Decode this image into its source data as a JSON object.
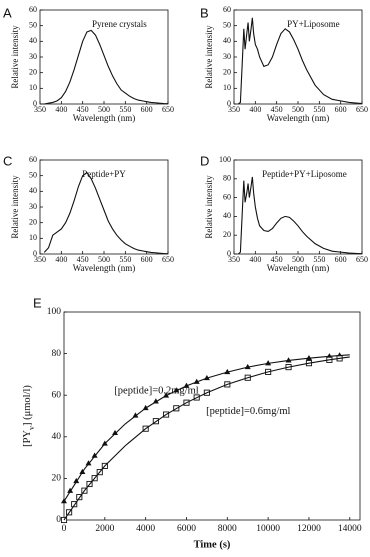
{
  "chart_data": [
    {
      "panel": "A",
      "type": "line",
      "title": "Pyrene crystals",
      "color": "#111111",
      "x": [
        350,
        360,
        370,
        380,
        390,
        400,
        410,
        420,
        430,
        440,
        450,
        460,
        470,
        480,
        490,
        500,
        510,
        520,
        530,
        540,
        550,
        560,
        570,
        580,
        590,
        600,
        610,
        620,
        630,
        640,
        650
      ],
      "values": [
        0,
        0,
        0.5,
        1,
        2,
        4,
        8,
        14,
        22,
        31,
        40,
        46,
        47,
        44,
        38,
        31,
        24,
        18,
        13,
        9,
        7,
        5,
        3.5,
        2.5,
        2,
        1.5,
        1,
        0.8,
        0.5,
        0.3,
        0.2
      ],
      "xlim": [
        350,
        650
      ],
      "ylim": [
        0,
        60
      ],
      "xticks": [
        350,
        400,
        450,
        500,
        550,
        600,
        650
      ],
      "yticks": [
        0,
        10,
        20,
        30,
        40,
        50,
        60
      ],
      "xlabel": "Wavelength (nm)",
      "ylabel": "Relative intensity"
    },
    {
      "panel": "B",
      "type": "line",
      "title": "PY+Liposome",
      "color": "#111111",
      "x": [
        360,
        365,
        370,
        373,
        376,
        380,
        383,
        386,
        390,
        393,
        396,
        400,
        405,
        410,
        420,
        430,
        440,
        450,
        460,
        470,
        480,
        490,
        500,
        510,
        520,
        540,
        560,
        580,
        600,
        620,
        640,
        650
      ],
      "values": [
        0,
        1,
        30,
        48,
        35,
        45,
        52,
        40,
        48,
        55,
        45,
        38,
        35,
        30,
        24,
        25,
        30,
        38,
        45,
        48,
        46,
        41,
        35,
        28,
        22,
        12,
        6,
        3,
        2,
        1,
        0.5,
        0.3
      ],
      "xlim": [
        350,
        650
      ],
      "ylim": [
        0,
        60
      ],
      "xticks": [
        350,
        400,
        450,
        500,
        550,
        600,
        650
      ],
      "yticks": [
        0,
        10,
        20,
        30,
        40,
        50,
        60
      ],
      "xlabel": "Wavelength (nm)",
      "ylabel": "Relative intensity"
    },
    {
      "panel": "C",
      "type": "line",
      "title": "Peptide+PY",
      "color": "#111111",
      "x": [
        360,
        370,
        380,
        390,
        400,
        410,
        420,
        430,
        440,
        450,
        460,
        470,
        480,
        490,
        500,
        510,
        520,
        530,
        540,
        550,
        560,
        570,
        580,
        590,
        600,
        610,
        620,
        630,
        640,
        650
      ],
      "values": [
        1,
        4,
        12,
        14,
        16,
        20,
        26,
        34,
        43,
        50,
        52,
        48,
        42,
        35,
        28,
        21,
        16,
        12,
        9,
        6.5,
        5,
        3.5,
        2.5,
        2,
        1.5,
        1,
        0.8,
        0.5,
        0.3,
        0.2
      ],
      "xlim": [
        350,
        650
      ],
      "ylim": [
        0,
        60
      ],
      "xticks": [
        350,
        400,
        450,
        500,
        550,
        600,
        650
      ],
      "yticks": [
        0,
        10,
        20,
        30,
        40,
        50,
        60
      ],
      "xlabel": "Wavelength (nm)",
      "ylabel": "Relative intensity"
    },
    {
      "panel": "D",
      "type": "line",
      "title": "Peptide+PY+Liposome",
      "color": "#111111",
      "x": [
        360,
        365,
        370,
        373,
        376,
        380,
        383,
        386,
        390,
        393,
        396,
        400,
        405,
        410,
        420,
        430,
        440,
        450,
        460,
        470,
        480,
        490,
        500,
        510,
        520,
        540,
        560,
        580,
        600,
        620,
        640,
        650
      ],
      "values": [
        0,
        2,
        50,
        78,
        55,
        65,
        75,
        60,
        72,
        82,
        65,
        50,
        38,
        30,
        25,
        24,
        27,
        33,
        38,
        40,
        39,
        35,
        30,
        24,
        19,
        11,
        6,
        3,
        2,
        1,
        0.5,
        0.3
      ],
      "xlim": [
        350,
        650
      ],
      "ylim": [
        0,
        100
      ],
      "xticks": [
        350,
        400,
        450,
        500,
        550,
        600,
        650
      ],
      "yticks": [
        0,
        20,
        40,
        60,
        80,
        100
      ],
      "xlabel": "Wavelength (nm)",
      "ylabel": "Relative intensity"
    },
    {
      "panel": "E",
      "type": "scatter",
      "xlim": [
        0,
        14500
      ],
      "ylim": [
        0,
        100
      ],
      "xticks": [
        0,
        2000,
        4000,
        6000,
        8000,
        10000,
        12000,
        14000
      ],
      "yticks": [
        0,
        20,
        40,
        60,
        80,
        100
      ],
      "xlabel": "Time (s)",
      "ylabel": [
        "[PY",
        "v",
        "] (μmol/l)"
      ],
      "annotations": [
        "[peptide]=0.2mg/ml",
        "[peptide]=0.6mg/ml"
      ],
      "series": [
        {
          "marker": "triangle",
          "color": "#111111",
          "x": [
            0,
            300,
            600,
            900,
            1200,
            1500,
            2000,
            2500,
            3500,
            4000,
            4500,
            5000,
            5500,
            6000,
            6500,
            7000,
            8000,
            9000,
            10000,
            11000,
            12000,
            13000,
            13500
          ],
          "values": [
            9,
            14,
            18.7,
            23.1,
            27.2,
            30.9,
            36.7,
            41.8,
            50.2,
            53.8,
            57,
            59.8,
            62.3,
            64.5,
            66.4,
            68.2,
            71.1,
            73.5,
            75.3,
            76.7,
            77.8,
            78.7,
            79.1
          ]
        },
        {
          "marker": "square",
          "color": "#111111",
          "x": [
            0,
            250,
            500,
            750,
            1000,
            1250,
            1500,
            1750,
            2000,
            4000,
            4500,
            5000,
            5500,
            6000,
            6500,
            7000,
            8000,
            9000,
            10000,
            11000,
            12000,
            13000,
            13500
          ],
          "values": [
            0,
            3.7,
            7.6,
            11,
            14.1,
            17.3,
            20.1,
            23,
            26,
            43.9,
            47.5,
            50.7,
            53.7,
            56.4,
            58.9,
            61.2,
            65.2,
            68.4,
            71.2,
            73.5,
            75.4,
            77,
            77.7
          ]
        },
        {
          "marker": "line",
          "color": "#111111",
          "x": [
            0,
            1000,
            2000,
            3000,
            4000,
            5000,
            6000,
            7000,
            8000,
            9000,
            10000,
            11000,
            12000,
            13000,
            14000
          ],
          "values": [
            9,
            24.5,
            36.7,
            46.2,
            53.8,
            59.8,
            64.5,
            68.2,
            71.1,
            73.5,
            75.3,
            76.7,
            77.8,
            78.7,
            79.4
          ]
        },
        {
          "marker": "line",
          "color": "#111111",
          "x": [
            0,
            1000,
            2000,
            3000,
            4000,
            5000,
            6000,
            7000,
            8000,
            9000,
            10000,
            11000,
            12000,
            13000,
            14000
          ],
          "values": [
            0,
            14.1,
            26,
            35.7,
            43.9,
            50.7,
            56.4,
            61.2,
            65.2,
            68.4,
            71.2,
            73.5,
            75.4,
            77,
            78.4
          ]
        }
      ]
    }
  ]
}
